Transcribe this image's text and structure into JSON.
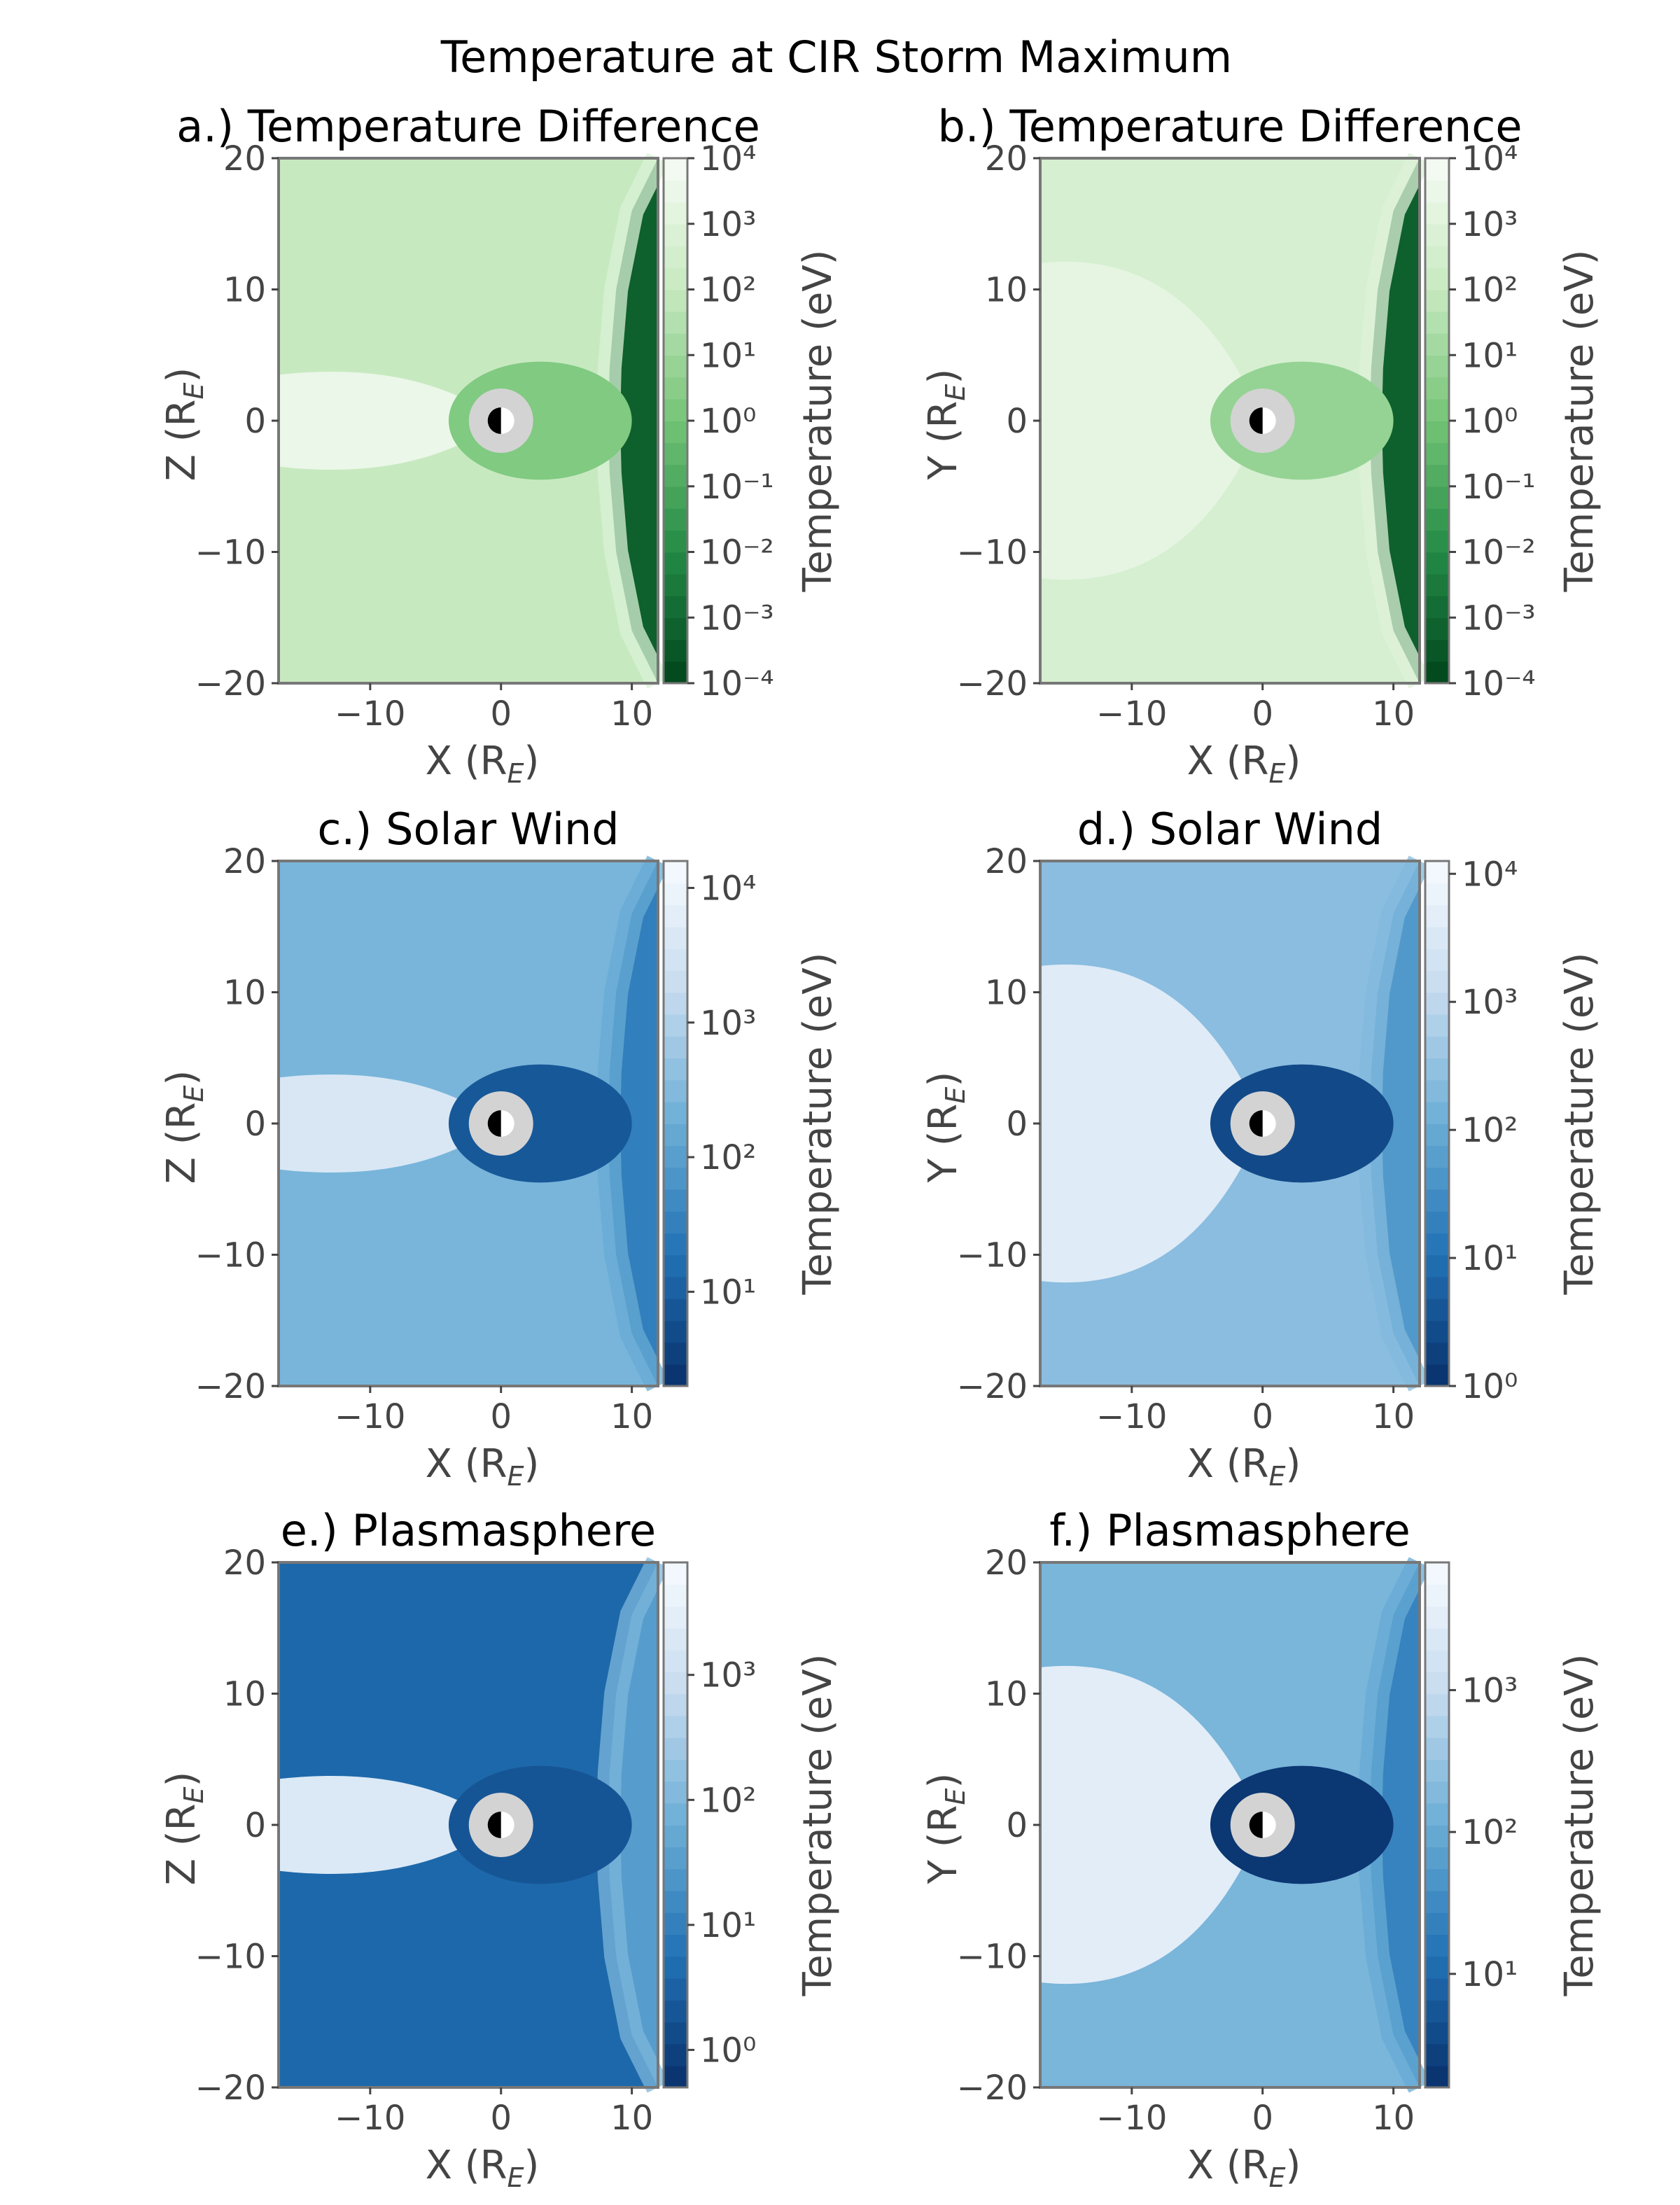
{
  "figure_title": "Temperature at CIR Storm Maximum",
  "chart_data": [
    {
      "type": "heatmap",
      "title": "a.) Temperature Difference",
      "xlabel": "X (R_E)",
      "ylabel": "Z (R_E)",
      "xlim": [
        -17,
        12
      ],
      "ylim": [
        -20,
        20
      ],
      "xticks": [
        -10,
        0,
        10
      ],
      "yticks": [
        -20,
        -10,
        0,
        10,
        20
      ],
      "colormap": "Greens",
      "colorbar": {
        "label": "Temperature (eV)",
        "scale": "log",
        "exp_range": [
          -4,
          4
        ],
        "ticks": [
          -4,
          -3,
          -2,
          -1,
          0,
          1,
          2,
          3,
          4
        ]
      },
      "plane": "XZ",
      "regions": {
        "background": 2.0,
        "magnetosheath": 2.8,
        "tail": 3.5,
        "near_earth": 0.3,
        "solar_wind": -3.2
      }
    },
    {
      "type": "heatmap",
      "title": "b.) Temperature Difference",
      "xlabel": "X (R_E)",
      "ylabel": "Y (R_E)",
      "xlim": [
        -17,
        12
      ],
      "ylim": [
        -20,
        20
      ],
      "xticks": [
        -10,
        0,
        10
      ],
      "yticks": [
        -20,
        -10,
        0,
        10,
        20
      ],
      "colormap": "Greens",
      "colorbar": {
        "label": "Temperature (eV)",
        "scale": "log",
        "exp_range": [
          -4,
          4
        ],
        "ticks": [
          -4,
          -3,
          -2,
          -1,
          0,
          1,
          2,
          3,
          4
        ]
      },
      "plane": "XY",
      "regions": {
        "background": 2.6,
        "magnetosheath": 2.9,
        "tail": 3.3,
        "near_earth": 0.8,
        "solar_wind": -3.2
      }
    },
    {
      "type": "heatmap",
      "title": "c.) Solar Wind",
      "xlabel": "X (R_E)",
      "ylabel": "Z (R_E)",
      "xlim": [
        -17,
        12
      ],
      "ylim": [
        -20,
        20
      ],
      "xticks": [
        -10,
        0,
        10
      ],
      "yticks": [
        -20,
        -10,
        0,
        10,
        20
      ],
      "colormap": "Blues_r",
      "colorbar": {
        "label": "Temperature (eV)",
        "scale": "log",
        "exp_range": [
          0.3,
          4.2
        ],
        "ticks": [
          1,
          2,
          3,
          4
        ]
      },
      "plane": "XZ",
      "regions": {
        "background": 2.4,
        "magnetosheath": 2.2,
        "tail": 3.6,
        "near_earth": 0.9,
        "solar_wind": 1.5
      }
    },
    {
      "type": "heatmap",
      "title": "d.) Solar Wind",
      "xlabel": "X (R_E)",
      "ylabel": "Y (R_E)",
      "xlim": [
        -17,
        12
      ],
      "ylim": [
        -20,
        20
      ],
      "xticks": [
        -10,
        0,
        10
      ],
      "yticks": [
        -20,
        -10,
        0,
        10,
        20
      ],
      "colormap": "Blues_r",
      "colorbar": {
        "label": "Temperature (eV)",
        "scale": "log",
        "exp_range": [
          0,
          4.1
        ],
        "ticks": [
          0,
          1,
          2,
          3,
          4
        ]
      },
      "plane": "XY",
      "regions": {
        "background": 2.4,
        "magnetosheath": 2.3,
        "tail": 3.6,
        "near_earth": 0.4,
        "solar_wind": 1.7
      }
    },
    {
      "type": "heatmap",
      "title": "e.) Plasmasphere",
      "xlabel": "X (R_E)",
      "ylabel": "Z (R_E)",
      "xlim": [
        -17,
        12
      ],
      "ylim": [
        -20,
        20
      ],
      "xticks": [
        -10,
        0,
        10
      ],
      "yticks": [
        -20,
        -10,
        0,
        10,
        20
      ],
      "colormap": "Blues_r",
      "colorbar": {
        "label": "Temperature (eV)",
        "scale": "log",
        "exp_range": [
          -0.3,
          3.9
        ],
        "ticks": [
          0,
          1,
          2,
          3
        ]
      },
      "plane": "XZ",
      "regions": {
        "background": 0.6,
        "magnetosheath": 2.0,
        "tail": 3.3,
        "near_earth": 0.3,
        "solar_wind": 1.5
      }
    },
    {
      "type": "heatmap",
      "title": "f.) Plasmasphere",
      "xlabel": "X (R_E)",
      "ylabel": "Y (R_E)",
      "xlim": [
        -17,
        12
      ],
      "ylim": [
        -20,
        20
      ],
      "xticks": [
        -10,
        0,
        10
      ],
      "yticks": [
        -20,
        -10,
        0,
        10,
        20
      ],
      "colormap": "Blues_r",
      "colorbar": {
        "label": "Temperature (eV)",
        "scale": "log",
        "exp_range": [
          0.2,
          3.9
        ],
        "ticks": [
          1,
          2,
          3
        ]
      },
      "plane": "XY",
      "regions": {
        "background": 2.2,
        "magnetosheath": 2.0,
        "tail": 3.5,
        "near_earth": 0.3,
        "solar_wind": 1.4
      }
    }
  ]
}
